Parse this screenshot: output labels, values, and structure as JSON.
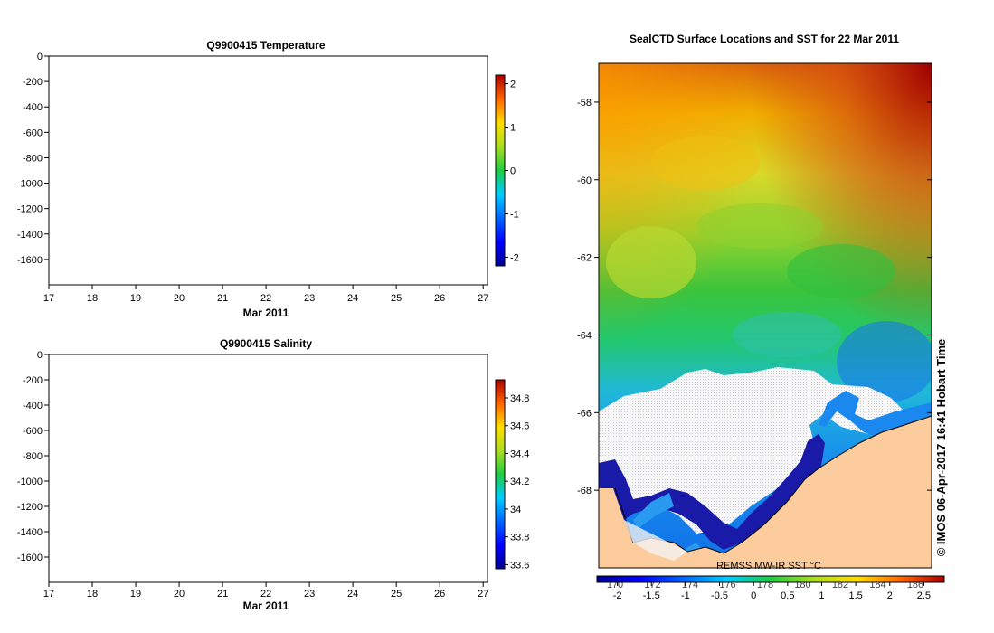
{
  "chart_data": [
    {
      "type": "scatter",
      "title": "Q9900415  Temperature",
      "xlabel": "Mar 2011",
      "ylabel": "",
      "x_ticks": [
        "17",
        "18",
        "19",
        "20",
        "21",
        "22",
        "23",
        "24",
        "25",
        "26",
        "27"
      ],
      "y_ticks": [
        "0",
        "-200",
        "-400",
        "-600",
        "-800",
        "-1000",
        "-1200",
        "-1400",
        "-1600"
      ],
      "xlim": [
        17,
        27.1
      ],
      "ylim": [
        -1800,
        0
      ],
      "points": [],
      "colorbar": {
        "ticks": [
          "2",
          "1",
          "0",
          "-1",
          "-2"
        ],
        "range": [
          -2.2,
          2.2
        ]
      }
    },
    {
      "type": "scatter",
      "title": "Q9900415  Salinity",
      "xlabel": "Mar 2011",
      "ylabel": "",
      "x_ticks": [
        "17",
        "18",
        "19",
        "20",
        "21",
        "22",
        "23",
        "24",
        "25",
        "26",
        "27"
      ],
      "y_ticks": [
        "0",
        "-200",
        "-400",
        "-600",
        "-800",
        "-1000",
        "-1200",
        "-1400",
        "-1600"
      ],
      "xlim": [
        17,
        27.1
      ],
      "ylim": [
        -1800,
        0
      ],
      "points": [],
      "colorbar": {
        "ticks": [
          "34.8",
          "34.6",
          "34.4",
          "34.2",
          "34",
          "33.8",
          "33.6"
        ],
        "range": [
          33.57,
          34.93
        ]
      }
    },
    {
      "type": "heatmap",
      "title": "SealCTD Surface Locations and SST for 22 Mar 2011",
      "y_ticks": [
        "-58",
        "-60",
        "-62",
        "-64",
        "-66",
        "-68"
      ],
      "x_ticks": [
        "170",
        "172",
        "174",
        "176",
        "178",
        "180",
        "182",
        "184",
        "186"
      ],
      "ylim": [
        -70,
        -57
      ],
      "colorbar": {
        "ticks": [
          "-2",
          "-1.5",
          "-1",
          "-0.5",
          "0",
          "0.5",
          "1",
          "1.5",
          "2",
          "2.5"
        ],
        "range": [
          -2.3,
          2.8
        ]
      },
      "source_label": "REMSS MW-IR SST °C",
      "credit": "© IMOS 06-Apr-2017 16:41 Hobart Time"
    }
  ],
  "colors": {
    "jet": [
      "#00008f",
      "#0000ff",
      "#0080ff",
      "#00ffff",
      "#80ff80",
      "#ffff00",
      "#ff8000",
      "#ff0000",
      "#800000"
    ],
    "land": "#fdcc9c",
    "ice": "#f2f2f2"
  }
}
